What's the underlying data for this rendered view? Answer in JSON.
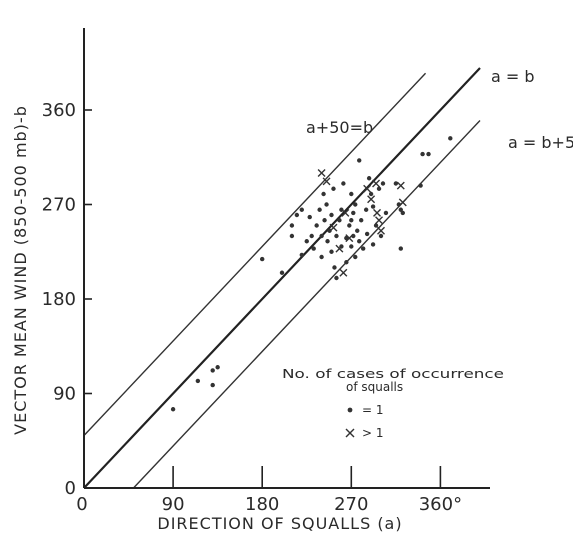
{
  "chart_data": {
    "type": "scatter",
    "title": "",
    "xlabel": "DIRECTION OF SQUALLS (a)",
    "ylabel": "VECTOR MEAN WIND (850-500 mb)-b",
    "xlim": [
      0,
      400
    ],
    "ylim": [
      0,
      440
    ],
    "x_ticks": [
      {
        "value": 0,
        "label": "0"
      },
      {
        "value": 90,
        "label": "90"
      },
      {
        "value": 180,
        "label": "180"
      },
      {
        "value": 270,
        "label": "270"
      },
      {
        "value": 360,
        "label": "360°"
      }
    ],
    "y_ticks": [
      {
        "value": 0,
        "label": "0"
      },
      {
        "value": 90,
        "label": "90"
      },
      {
        "value": 180,
        "label": "180"
      },
      {
        "value": 270,
        "label": "270"
      },
      {
        "value": 360,
        "label": "360"
      }
    ],
    "reference_lines": [
      {
        "label": "a+50=b",
        "intercept": 50
      },
      {
        "label": "a = b",
        "intercept": 0
      },
      {
        "label": "a = b+50",
        "intercept": -50
      }
    ],
    "legend": {
      "title": "No. of cases of occurrence of squalls",
      "entries": [
        {
          "symbol": "dot",
          "label": "= 1"
        },
        {
          "symbol": "cross",
          "label": "> 1"
        }
      ]
    },
    "series": [
      {
        "name": "= 1",
        "marker": "dot",
        "points": [
          [
            90,
            75
          ],
          [
            115,
            102
          ],
          [
            130,
            112
          ],
          [
            135,
            115
          ],
          [
            130,
            98
          ],
          [
            180,
            218
          ],
          [
            200,
            205
          ],
          [
            210,
            240
          ],
          [
            210,
            250
          ],
          [
            215,
            260
          ],
          [
            220,
            265
          ],
          [
            220,
            222
          ],
          [
            225,
            235
          ],
          [
            228,
            258
          ],
          [
            230,
            240
          ],
          [
            232,
            228
          ],
          [
            235,
            250
          ],
          [
            238,
            265
          ],
          [
            240,
            220
          ],
          [
            240,
            240
          ],
          [
            242,
            280
          ],
          [
            243,
            255
          ],
          [
            245,
            270
          ],
          [
            246,
            235
          ],
          [
            248,
            245
          ],
          [
            250,
            260
          ],
          [
            250,
            225
          ],
          [
            252,
            285
          ],
          [
            253,
            210
          ],
          [
            255,
            240
          ],
          [
            255,
            200
          ],
          [
            258,
            255
          ],
          [
            260,
            230
          ],
          [
            260,
            265
          ],
          [
            262,
            290
          ],
          [
            265,
            238
          ],
          [
            265,
            215
          ],
          [
            268,
            250
          ],
          [
            270,
            280
          ],
          [
            270,
            255
          ],
          [
            270,
            230
          ],
          [
            272,
            240
          ],
          [
            272,
            262
          ],
          [
            274,
            270
          ],
          [
            274,
            220
          ],
          [
            276,
            245
          ],
          [
            278,
            235
          ],
          [
            278,
            312
          ],
          [
            280,
            255
          ],
          [
            282,
            228
          ],
          [
            285,
            265
          ],
          [
            286,
            242
          ],
          [
            288,
            295
          ],
          [
            290,
            280
          ],
          [
            292,
            268
          ],
          [
            292,
            232
          ],
          [
            295,
            250
          ],
          [
            298,
            285
          ],
          [
            300,
            240
          ],
          [
            302,
            290
          ],
          [
            305,
            262
          ],
          [
            315,
            290
          ],
          [
            318,
            270
          ],
          [
            320,
            265
          ],
          [
            322,
            262
          ],
          [
            320,
            228
          ],
          [
            340,
            288
          ],
          [
            342,
            318
          ],
          [
            348,
            318
          ],
          [
            370,
            333
          ]
        ]
      },
      {
        "name": "> 1",
        "marker": "cross",
        "points": [
          [
            240,
            300
          ],
          [
            245,
            292
          ],
          [
            252,
            248
          ],
          [
            258,
            228
          ],
          [
            262,
            205
          ],
          [
            264,
            262
          ],
          [
            268,
            238
          ],
          [
            286,
            285
          ],
          [
            290,
            275
          ],
          [
            295,
            290
          ],
          [
            296,
            262
          ],
          [
            298,
            255
          ],
          [
            300,
            245
          ],
          [
            320,
            288
          ],
          [
            322,
            272
          ]
        ]
      }
    ]
  }
}
